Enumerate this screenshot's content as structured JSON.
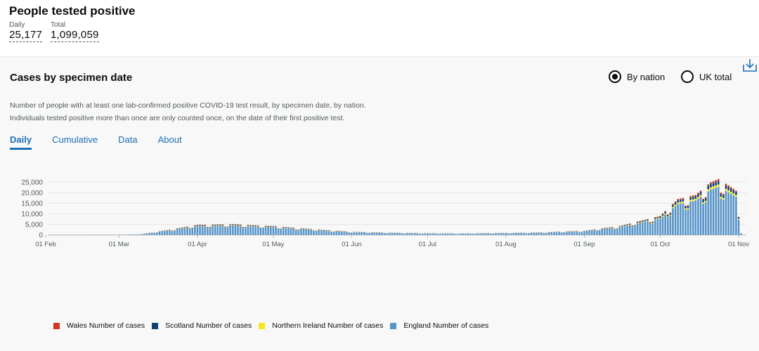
{
  "headline": {
    "title": "People tested positive",
    "daily_label": "Daily",
    "daily_value": "25,177",
    "total_label": "Total",
    "total_value": "1,099,059"
  },
  "card": {
    "title": "Cases by specimen date",
    "radio_by_nation": "By nation",
    "radio_uk_total": "UK total",
    "selected_radio": "By nation",
    "description_line1": "Number of people with at least one lab-confirmed positive COVID-19 test result, by specimen date, by nation.",
    "description_line2": "Individuals tested positive more than once are only counted once, on the date of their first positive test.",
    "tabs": [
      {
        "label": "Daily",
        "active": true
      },
      {
        "label": "Cumulative",
        "active": false
      },
      {
        "label": "Data",
        "active": false
      },
      {
        "label": "About",
        "active": false
      }
    ]
  },
  "icons": {
    "download": "download-icon"
  },
  "chart_data": {
    "type": "bar",
    "stacked": true,
    "xlabel": "",
    "ylabel": "",
    "ylim": [
      0,
      27500
    ],
    "y_ticks": [
      0,
      5000,
      10000,
      15000,
      20000,
      25000
    ],
    "y_tick_labels": [
      "0",
      "5,000",
      "10,000",
      "15,000",
      "20,000",
      "25,000"
    ],
    "x_tick_labels": [
      "01 Feb",
      "01 Mar",
      "01 Apr",
      "01 May",
      "01 Jun",
      "01 Jul",
      "01 Aug",
      "01 Sep",
      "01 Oct",
      "01 Nov"
    ],
    "x_tick_dates": [
      "2020-02-01",
      "2020-03-01",
      "2020-04-01",
      "2020-05-01",
      "2020-06-01",
      "2020-07-01",
      "2020-08-01",
      "2020-09-01",
      "2020-10-01",
      "2020-11-01"
    ],
    "grid": true,
    "legend_position": "bottom-left",
    "series": [
      {
        "name": "Wales Number of cases",
        "color": "#d4351c"
      },
      {
        "name": "Scotland Number of cases",
        "color": "#12436d"
      },
      {
        "name": "Northern Ireland Number of cases",
        "color": "#f8e71c"
      },
      {
        "name": "England Number of cases",
        "color": "#5694ca"
      }
    ],
    "daily_total_approx": [
      {
        "date": "2020-02-01",
        "total": 0
      },
      {
        "date": "2020-03-01",
        "total": 30
      },
      {
        "date": "2020-03-10",
        "total": 400
      },
      {
        "date": "2020-03-20",
        "total": 2300
      },
      {
        "date": "2020-04-01",
        "total": 4800
      },
      {
        "date": "2020-04-15",
        "total": 5100
      },
      {
        "date": "2020-05-01",
        "total": 4200
      },
      {
        "date": "2020-05-15",
        "total": 2900
      },
      {
        "date": "2020-06-01",
        "total": 1500
      },
      {
        "date": "2020-06-15",
        "total": 1100
      },
      {
        "date": "2020-07-01",
        "total": 800
      },
      {
        "date": "2020-07-15",
        "total": 700
      },
      {
        "date": "2020-08-01",
        "total": 950
      },
      {
        "date": "2020-08-15",
        "total": 1200
      },
      {
        "date": "2020-09-01",
        "total": 2000
      },
      {
        "date": "2020-09-15",
        "total": 4200
      },
      {
        "date": "2020-10-01",
        "total": 9000
      },
      {
        "date": "2020-10-08",
        "total": 17000
      },
      {
        "date": "2020-10-15",
        "total": 19000
      },
      {
        "date": "2020-10-21",
        "total": 25000
      },
      {
        "date": "2020-10-24",
        "total": 26500
      },
      {
        "date": "2020-10-28",
        "total": 23500
      },
      {
        "date": "2020-10-31",
        "total": 21000
      },
      {
        "date": "2020-11-02",
        "total": 1000
      }
    ],
    "share": {
      "england": 0.86,
      "northern_ireland": 0.04,
      "scotland": 0.07,
      "wales": 0.03
    }
  }
}
